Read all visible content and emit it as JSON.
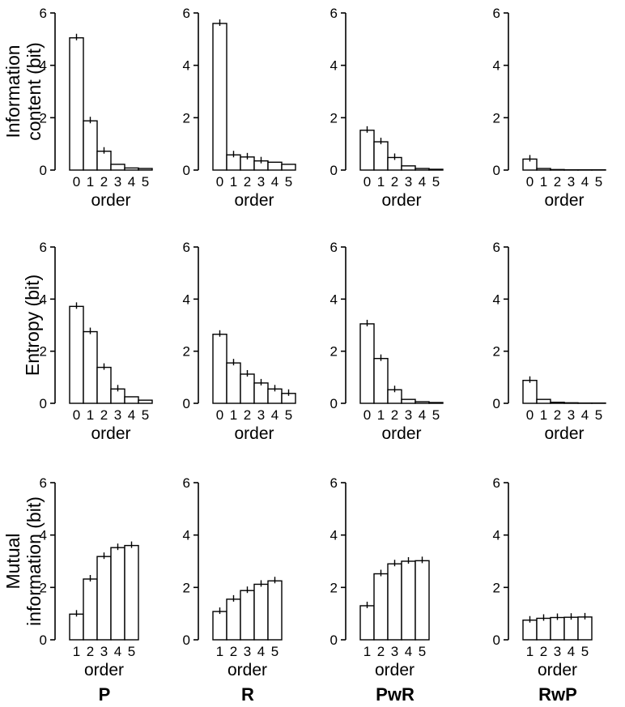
{
  "chart_data": {
    "type": "bar",
    "columns": [
      "P",
      "R",
      "PwR",
      "RwP"
    ],
    "ylim": [
      0,
      6
    ],
    "yticks": [
      "0",
      "2",
      "4",
      "6"
    ],
    "xlabel": "order",
    "rows": [
      {
        "ylabel": [
          "Information",
          "content (bit)"
        ],
        "orders": [
          "0",
          "1",
          "2",
          "3",
          "4",
          "5"
        ],
        "panels": [
          {
            "column": "P",
            "values": [
              5.05,
              1.88,
              0.72,
              0.22,
              0.08,
              0.06
            ]
          },
          {
            "column": "R",
            "values": [
              5.6,
              0.58,
              0.5,
              0.35,
              0.3,
              0.22
            ]
          },
          {
            "column": "PwR",
            "values": [
              1.52,
              1.08,
              0.48,
              0.16,
              0.06,
              0.03
            ]
          },
          {
            "column": "RwP",
            "values": [
              0.42,
              0.06,
              0.02,
              0.01,
              0.01,
              0.01
            ]
          }
        ]
      },
      {
        "ylabel": [
          "Entropy (bit)"
        ],
        "orders": [
          "0",
          "1",
          "2",
          "3",
          "4",
          "5"
        ],
        "panels": [
          {
            "column": "P",
            "values": [
              3.72,
              2.75,
              1.38,
              0.55,
              0.25,
              0.12
            ]
          },
          {
            "column": "R",
            "values": [
              2.65,
              1.55,
              1.12,
              0.78,
              0.55,
              0.38
            ]
          },
          {
            "column": "PwR",
            "values": [
              3.05,
              1.72,
              0.52,
              0.15,
              0.06,
              0.03
            ]
          },
          {
            "column": "RwP",
            "values": [
              0.88,
              0.15,
              0.04,
              0.02,
              0.01,
              0.01
            ]
          }
        ]
      },
      {
        "ylabel": [
          "Mutual",
          "information (bit)"
        ],
        "orders": [
          "1",
          "2",
          "3",
          "4",
          "5"
        ],
        "panels": [
          {
            "column": "P",
            "values": [
              0.98,
              2.32,
              3.18,
              3.52,
              3.6
            ]
          },
          {
            "column": "R",
            "values": [
              1.08,
              1.55,
              1.88,
              2.12,
              2.25
            ]
          },
          {
            "column": "PwR",
            "values": [
              1.3,
              2.52,
              2.9,
              3.0,
              3.02
            ]
          },
          {
            "column": "RwP",
            "values": [
              0.75,
              0.82,
              0.85,
              0.86,
              0.87
            ]
          }
        ]
      }
    ]
  }
}
